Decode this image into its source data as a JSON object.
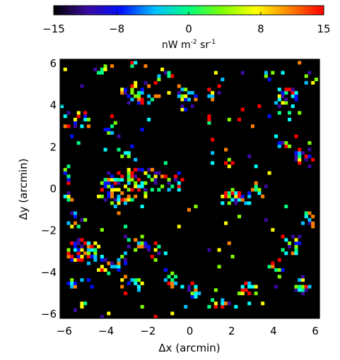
{
  "chart_data": {
    "type": "heatmap",
    "title": "",
    "colorbar": {
      "label_main": "nW m",
      "label_exp1": "-2",
      "label_mid": " sr",
      "label_exp2": "-1",
      "range": [
        -15,
        15
      ],
      "tick_values": [
        -15,
        -8,
        0,
        8,
        15
      ],
      "tick_labels": [
        "−15",
        "−8",
        "0",
        "8",
        "15"
      ],
      "colormap": [
        "#000000",
        "#3a0aa0",
        "#0010ff",
        "#00c0ff",
        "#00ff80",
        "#80ff00",
        "#ffff00",
        "#ff8000",
        "#ff0000"
      ]
    },
    "xaxis": {
      "label_symbol": "Δx",
      "label_unit": " (arcmin)",
      "range": [
        -6.2,
        6.2
      ],
      "tick_values": [
        -6,
        -4,
        -2,
        0,
        2,
        4,
        6
      ],
      "tick_labels": [
        "−6",
        "−4",
        "−2",
        "0",
        "2",
        "4",
        "6"
      ]
    },
    "yaxis": {
      "label_symbol": "Δy",
      "label_unit": " (arcmin)",
      "range": [
        -6.2,
        6.2
      ],
      "tick_values": [
        -6,
        -4,
        -2,
        0,
        2,
        4,
        6
      ],
      "tick_labels": [
        "−6",
        "−4",
        "−2",
        "0",
        "2",
        "4",
        "6"
      ]
    },
    "background_color": "#000000",
    "pixel_size_arcmin": 0.16,
    "clusters": [
      {
        "x": -3.4,
        "y": 0.0,
        "rx": 0.9,
        "ry": 0.9,
        "density": 0.55
      },
      {
        "x": -2.3,
        "y": 0.3,
        "rx": 1.0,
        "ry": 0.8,
        "density": 0.5
      },
      {
        "x": -1.0,
        "y": 0.3,
        "rx": 0.7,
        "ry": 0.7,
        "density": 0.45
      },
      {
        "x": -3.0,
        "y": 1.8,
        "rx": 0.5,
        "ry": 0.4,
        "density": 0.45
      },
      {
        "x": 2.2,
        "y": -0.4,
        "rx": 0.9,
        "ry": 0.4,
        "density": 0.55
      },
      {
        "x": 3.2,
        "y": -0.1,
        "rx": 0.6,
        "ry": 0.4,
        "density": 0.45
      },
      {
        "x": -2.4,
        "y": 4.6,
        "rx": 1.0,
        "ry": 0.6,
        "density": 0.5
      },
      {
        "x": -1.4,
        "y": 5.4,
        "rx": 0.6,
        "ry": 0.4,
        "density": 0.4
      },
      {
        "x": -0.2,
        "y": 4.4,
        "rx": 0.5,
        "ry": 0.7,
        "density": 0.4
      },
      {
        "x": 1.2,
        "y": 4.6,
        "rx": 0.4,
        "ry": 0.4,
        "density": 0.35
      },
      {
        "x": 4.6,
        "y": 4.2,
        "rx": 0.6,
        "ry": 0.8,
        "density": 0.45
      },
      {
        "x": 5.8,
        "y": 5.2,
        "rx": 0.4,
        "ry": 0.6,
        "density": 0.4
      },
      {
        "x": -5.4,
        "y": 3.2,
        "rx": 0.7,
        "ry": 0.6,
        "density": 0.5
      },
      {
        "x": -3.8,
        "y": 3.0,
        "rx": 0.5,
        "ry": 0.5,
        "density": 0.4
      },
      {
        "x": -5.8,
        "y": 0.2,
        "rx": 0.3,
        "ry": 1.0,
        "density": 0.5
      },
      {
        "x": -5.4,
        "y": -1.5,
        "rx": 0.5,
        "ry": 0.6,
        "density": 0.45
      },
      {
        "x": -5.0,
        "y": -3.0,
        "rx": 0.9,
        "ry": 0.6,
        "density": 0.5
      },
      {
        "x": -3.8,
        "y": -3.6,
        "rx": 0.9,
        "ry": 0.5,
        "density": 0.55
      },
      {
        "x": -2.4,
        "y": -2.6,
        "rx": 0.7,
        "ry": 0.4,
        "density": 0.5
      },
      {
        "x": -1.6,
        "y": -3.0,
        "rx": 0.4,
        "ry": 0.5,
        "density": 0.45
      },
      {
        "x": -0.9,
        "y": -4.1,
        "rx": 0.4,
        "ry": 0.6,
        "density": 0.4
      },
      {
        "x": -5.6,
        "y": -4.5,
        "rx": 0.6,
        "ry": 0.3,
        "density": 0.5
      },
      {
        "x": -5.2,
        "y": -5.6,
        "rx": 0.4,
        "ry": 0.4,
        "density": 0.4
      },
      {
        "x": -2.8,
        "y": -4.6,
        "rx": 0.6,
        "ry": 0.5,
        "density": 0.4
      },
      {
        "x": 0.1,
        "y": -4.8,
        "rx": 0.5,
        "ry": 0.4,
        "density": 0.4
      },
      {
        "x": 1.5,
        "y": -5.5,
        "rx": 0.8,
        "ry": 0.3,
        "density": 0.5
      },
      {
        "x": 2.8,
        "y": -4.9,
        "rx": 0.5,
        "ry": 0.4,
        "density": 0.45
      },
      {
        "x": 4.2,
        "y": -3.8,
        "rx": 0.6,
        "ry": 0.4,
        "density": 0.45
      },
      {
        "x": 4.8,
        "y": -2.6,
        "rx": 0.5,
        "ry": 0.6,
        "density": 0.4
      },
      {
        "x": 5.4,
        "y": -4.6,
        "rx": 0.5,
        "ry": 0.4,
        "density": 0.4
      },
      {
        "x": 5.7,
        "y": -1.6,
        "rx": 0.4,
        "ry": 0.5,
        "density": 0.4
      },
      {
        "x": 5.4,
        "y": 1.6,
        "rx": 0.5,
        "ry": 0.8,
        "density": 0.4
      },
      {
        "x": 4.6,
        "y": 2.2,
        "rx": 0.4,
        "ry": 0.3,
        "density": 0.35
      },
      {
        "x": 0.9,
        "y": 3.2,
        "rx": 0.3,
        "ry": 0.3,
        "density": 0.3
      },
      {
        "x": 2.1,
        "y": 1.2,
        "rx": 0.4,
        "ry": 0.3,
        "density": 0.3
      },
      {
        "x": 3.9,
        "y": 5.4,
        "rx": 0.4,
        "ry": 0.3,
        "density": 0.35
      },
      {
        "x": -4.2,
        "y": 5.8,
        "rx": 0.4,
        "ry": 0.3,
        "density": 0.35
      },
      {
        "x": -2.7,
        "y": 6.0,
        "rx": 0.3,
        "ry": 0.2,
        "density": 0.35
      }
    ]
  }
}
